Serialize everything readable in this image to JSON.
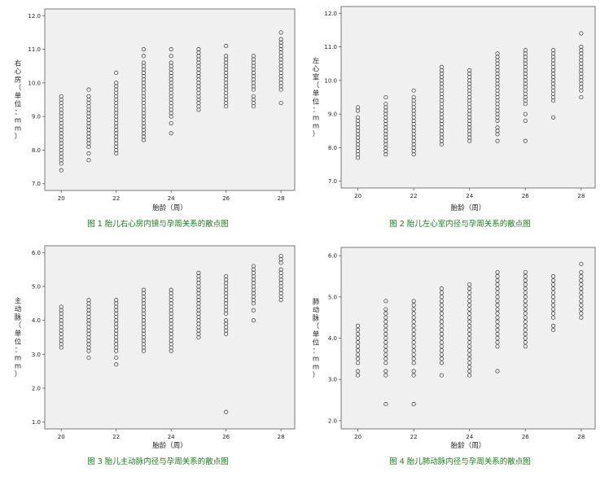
{
  "chart_data": [
    {
      "type": "scatter",
      "title": "图 1  胎儿右心房内镜与孕周关系的散点图",
      "xlabel": "胎龄（周）",
      "ylabel": "右心房（单位：mm）",
      "xlim": [
        19.4,
        28.5
      ],
      "ylim": [
        6.8,
        12.2
      ],
      "xticks": [
        20,
        22,
        24,
        26,
        28
      ],
      "yticks": [
        7.0,
        8.0,
        9.0,
        10.0,
        11.0,
        12.0
      ],
      "grid": false,
      "columns": [
        {
          "x": 20,
          "y": [
            7.4,
            7.6,
            7.7,
            7.8,
            7.9,
            8.0,
            8.1,
            8.2,
            8.3,
            8.4,
            8.5,
            8.6,
            8.7,
            8.8,
            8.9,
            9.0,
            9.1,
            9.2,
            9.3,
            9.4,
            9.5,
            9.6
          ]
        },
        {
          "x": 21,
          "y": [
            7.7,
            7.9,
            8.1,
            8.2,
            8.3,
            8.4,
            8.5,
            8.6,
            8.7,
            8.8,
            8.9,
            9.0,
            9.1,
            9.2,
            9.3,
            9.4,
            9.5,
            9.6,
            9.8
          ]
        },
        {
          "x": 22,
          "y": [
            7.9,
            8.0,
            8.1,
            8.2,
            8.3,
            8.4,
            8.5,
            8.6,
            8.7,
            8.8,
            8.9,
            9.0,
            9.1,
            9.2,
            9.3,
            9.4,
            9.5,
            9.6,
            9.7,
            9.8,
            9.9,
            10.0,
            10.3
          ]
        },
        {
          "x": 23,
          "y": [
            8.3,
            8.4,
            8.5,
            8.6,
            8.7,
            8.8,
            8.9,
            9.0,
            9.1,
            9.2,
            9.3,
            9.4,
            9.5,
            9.6,
            9.7,
            9.8,
            9.9,
            10.0,
            10.1,
            10.2,
            10.3,
            10.4,
            10.5,
            10.6,
            10.8,
            11.0
          ]
        },
        {
          "x": 24,
          "y": [
            8.5,
            8.8,
            9.0,
            9.1,
            9.2,
            9.3,
            9.4,
            9.5,
            9.6,
            9.7,
            9.8,
            9.9,
            10.0,
            10.1,
            10.2,
            10.3,
            10.4,
            10.5,
            10.6,
            10.8,
            11.0
          ]
        },
        {
          "x": 25,
          "y": [
            9.2,
            9.3,
            9.4,
            9.5,
            9.6,
            9.7,
            9.8,
            9.9,
            10.0,
            10.1,
            10.2,
            10.3,
            10.4,
            10.5,
            10.6,
            10.7,
            10.8,
            10.9,
            11.0
          ]
        },
        {
          "x": 26,
          "y": [
            9.3,
            9.4,
            9.5,
            9.6,
            9.7,
            9.8,
            9.9,
            10.0,
            10.1,
            10.2,
            10.3,
            10.4,
            10.5,
            10.6,
            10.7,
            10.8,
            11.1
          ]
        },
        {
          "x": 27,
          "y": [
            9.3,
            9.4,
            9.5,
            9.6,
            9.8,
            9.9,
            10.0,
            10.1,
            10.2,
            10.3,
            10.4,
            10.5,
            10.6,
            10.7,
            10.8
          ]
        },
        {
          "x": 28,
          "y": [
            9.4,
            9.8,
            9.9,
            10.0,
            10.1,
            10.2,
            10.3,
            10.4,
            10.5,
            10.6,
            10.7,
            10.8,
            10.9,
            11.0,
            11.1,
            11.2,
            11.3,
            11.5
          ]
        }
      ]
    },
    {
      "type": "scatter",
      "title": "图 2  胎儿左心室内径与孕周关系的散点图",
      "xlabel": "胎龄（周）",
      "ylabel": "左心室（单位：mm）",
      "xlim": [
        19.4,
        28.5
      ],
      "ylim": [
        6.8,
        12.2
      ],
      "xticks": [
        20,
        22,
        24,
        26,
        28
      ],
      "yticks": [
        7.0,
        8.0,
        9.0,
        10.0,
        11.0,
        12.0
      ],
      "grid": false,
      "columns": [
        {
          "x": 20,
          "y": [
            7.7,
            7.8,
            7.9,
            8.0,
            8.1,
            8.2,
            8.3,
            8.4,
            8.5,
            8.6,
            8.7,
            8.8,
            8.9,
            9.1,
            9.2
          ]
        },
        {
          "x": 21,
          "y": [
            7.8,
            7.9,
            8.0,
            8.1,
            8.2,
            8.3,
            8.4,
            8.5,
            8.6,
            8.7,
            8.8,
            8.9,
            9.0,
            9.1,
            9.2,
            9.3,
            9.5
          ]
        },
        {
          "x": 22,
          "y": [
            7.8,
            7.9,
            8.0,
            8.1,
            8.2,
            8.3,
            8.4,
            8.5,
            8.6,
            8.7,
            8.8,
            8.9,
            9.0,
            9.1,
            9.2,
            9.3,
            9.4,
            9.5,
            9.7
          ]
        },
        {
          "x": 23,
          "y": [
            8.1,
            8.2,
            8.3,
            8.4,
            8.5,
            8.6,
            8.7,
            8.8,
            8.9,
            9.0,
            9.1,
            9.2,
            9.3,
            9.4,
            9.5,
            9.6,
            9.7,
            9.8,
            9.9,
            10.0,
            10.1,
            10.2,
            10.3,
            10.4
          ]
        },
        {
          "x": 24,
          "y": [
            8.2,
            8.3,
            8.4,
            8.5,
            8.6,
            8.7,
            8.8,
            8.9,
            9.0,
            9.1,
            9.2,
            9.3,
            9.4,
            9.5,
            9.6,
            9.7,
            9.8,
            9.9,
            10.0,
            10.1,
            10.2,
            10.3
          ]
        },
        {
          "x": 25,
          "y": [
            8.2,
            8.4,
            8.5,
            8.6,
            8.8,
            8.9,
            9.0,
            9.1,
            9.2,
            9.3,
            9.4,
            9.5,
            9.6,
            9.7,
            9.8,
            9.9,
            10.0,
            10.1,
            10.2,
            10.3,
            10.4,
            10.5,
            10.6,
            10.7,
            10.8
          ]
        },
        {
          "x": 26,
          "y": [
            8.2,
            8.8,
            9.0,
            9.3,
            9.4,
            9.5,
            9.6,
            9.7,
            9.8,
            9.9,
            10.0,
            10.1,
            10.2,
            10.3,
            10.4,
            10.5,
            10.6,
            10.7,
            10.8,
            10.9
          ]
        },
        {
          "x": 27,
          "y": [
            8.9,
            9.4,
            9.5,
            9.6,
            9.7,
            9.8,
            9.9,
            10.0,
            10.1,
            10.2,
            10.3,
            10.4,
            10.5,
            10.6,
            10.7,
            10.8,
            10.9
          ]
        },
        {
          "x": 28,
          "y": [
            9.5,
            9.7,
            9.8,
            9.9,
            10.0,
            10.1,
            10.2,
            10.3,
            10.4,
            10.5,
            10.6,
            10.7,
            10.8,
            10.9,
            11.0,
            11.4
          ]
        }
      ]
    },
    {
      "type": "scatter",
      "title": "图 3  胎儿主动脉内径与孕周关系的散点图",
      "xlabel": "胎龄（周）",
      "ylabel": "主动脉（单位：mm）",
      "xlim": [
        19.4,
        28.5
      ],
      "ylim": [
        0.8,
        6.2
      ],
      "xticks": [
        20,
        22,
        24,
        26,
        28
      ],
      "yticks": [
        1.0,
        2.0,
        3.0,
        4.0,
        5.0,
        6.0
      ],
      "grid": false,
      "columns": [
        {
          "x": 20,
          "y": [
            3.2,
            3.3,
            3.4,
            3.5,
            3.6,
            3.7,
            3.8,
            3.9,
            4.0,
            4.1,
            4.2,
            4.3,
            4.4
          ]
        },
        {
          "x": 21,
          "y": [
            2.9,
            3.1,
            3.2,
            3.3,
            3.4,
            3.5,
            3.6,
            3.7,
            3.8,
            3.9,
            4.0,
            4.1,
            4.2,
            4.3,
            4.4,
            4.5,
            4.6
          ]
        },
        {
          "x": 22,
          "y": [
            2.7,
            2.9,
            3.1,
            3.2,
            3.3,
            3.4,
            3.5,
            3.6,
            3.7,
            3.8,
            3.9,
            4.0,
            4.1,
            4.2,
            4.3,
            4.4,
            4.5,
            4.6
          ]
        },
        {
          "x": 23,
          "y": [
            3.1,
            3.2,
            3.3,
            3.4,
            3.5,
            3.6,
            3.7,
            3.8,
            3.9,
            4.0,
            4.1,
            4.2,
            4.3,
            4.4,
            4.5,
            4.6,
            4.7,
            4.8,
            4.9
          ]
        },
        {
          "x": 24,
          "y": [
            3.1,
            3.2,
            3.3,
            3.4,
            3.5,
            3.6,
            3.7,
            3.8,
            3.9,
            4.0,
            4.1,
            4.2,
            4.3,
            4.4,
            4.5,
            4.6,
            4.7,
            4.8,
            4.9
          ]
        },
        {
          "x": 25,
          "y": [
            3.5,
            3.6,
            3.7,
            3.8,
            3.9,
            4.0,
            4.1,
            4.2,
            4.3,
            4.4,
            4.5,
            4.6,
            4.7,
            4.8,
            4.9,
            5.0,
            5.1,
            5.2,
            5.3,
            5.4
          ]
        },
        {
          "x": 26,
          "y": [
            1.3,
            3.6,
            3.7,
            3.8,
            3.9,
            4.0,
            4.2,
            4.3,
            4.4,
            4.5,
            4.6,
            4.7,
            4.8,
            4.9,
            5.0,
            5.1,
            5.2,
            5.3
          ]
        },
        {
          "x": 27,
          "y": [
            4.0,
            4.3,
            4.5,
            4.6,
            4.7,
            4.8,
            4.9,
            5.0,
            5.1,
            5.2,
            5.3,
            5.4,
            5.5,
            5.6
          ]
        },
        {
          "x": 28,
          "y": [
            4.6,
            4.7,
            4.8,
            4.9,
            5.0,
            5.1,
            5.2,
            5.3,
            5.4,
            5.5,
            5.7,
            5.8,
            5.9
          ]
        }
      ]
    },
    {
      "type": "scatter",
      "title": "图 4  胎儿肺动脉内径与孕周关系的散点图",
      "xlabel": "胎龄（周）",
      "ylabel": "肺动脉（单位：mm）",
      "xlim": [
        19.4,
        28.5
      ],
      "ylim": [
        1.8,
        6.2
      ],
      "xticks": [
        20,
        22,
        24,
        26,
        28
      ],
      "yticks": [
        2.0,
        3.0,
        4.0,
        5.0,
        6.0
      ],
      "grid": false,
      "columns": [
        {
          "x": 20,
          "y": [
            3.1,
            3.2,
            3.4,
            3.5,
            3.6,
            3.7,
            3.8,
            3.9,
            4.0,
            4.1,
            4.2,
            4.3
          ]
        },
        {
          "x": 21,
          "y": [
            2.4,
            3.1,
            3.2,
            3.4,
            3.5,
            3.6,
            3.7,
            3.8,
            3.9,
            4.0,
            4.1,
            4.2,
            4.3,
            4.4,
            4.5,
            4.6,
            4.7,
            4.9
          ]
        },
        {
          "x": 22,
          "y": [
            2.4,
            3.1,
            3.2,
            3.4,
            3.5,
            3.6,
            3.7,
            3.8,
            3.9,
            4.0,
            4.1,
            4.2,
            4.3,
            4.4,
            4.5,
            4.6,
            4.7,
            4.8,
            4.9
          ]
        },
        {
          "x": 23,
          "y": [
            3.1,
            3.4,
            3.5,
            3.6,
            3.7,
            3.8,
            3.9,
            4.0,
            4.1,
            4.2,
            4.3,
            4.4,
            4.5,
            4.6,
            4.7,
            4.8,
            4.9,
            5.0,
            5.1,
            5.2
          ]
        },
        {
          "x": 24,
          "y": [
            3.1,
            3.2,
            3.3,
            3.4,
            3.5,
            3.6,
            3.7,
            3.8,
            3.9,
            4.0,
            4.1,
            4.2,
            4.3,
            4.4,
            4.5,
            4.6,
            4.7,
            4.8,
            4.9,
            5.0,
            5.1,
            5.2,
            5.3
          ]
        },
        {
          "x": 25,
          "y": [
            3.2,
            3.8,
            3.9,
            4.0,
            4.1,
            4.2,
            4.3,
            4.4,
            4.5,
            4.6,
            4.7,
            4.8,
            4.9,
            5.0,
            5.1,
            5.2,
            5.3,
            5.4,
            5.5,
            5.6
          ]
        },
        {
          "x": 26,
          "y": [
            3.8,
            3.9,
            4.0,
            4.1,
            4.2,
            4.3,
            4.4,
            4.5,
            4.6,
            4.7,
            4.8,
            4.9,
            5.0,
            5.1,
            5.2,
            5.3,
            5.4,
            5.5,
            5.6
          ]
        },
        {
          "x": 27,
          "y": [
            4.2,
            4.3,
            4.5,
            4.6,
            4.7,
            4.8,
            4.9,
            5.0,
            5.1,
            5.2,
            5.3,
            5.4,
            5.5
          ]
        },
        {
          "x": 28,
          "y": [
            4.5,
            4.6,
            4.7,
            4.8,
            4.9,
            5.0,
            5.1,
            5.2,
            5.3,
            5.4,
            5.5,
            5.6,
            5.8
          ]
        }
      ]
    }
  ]
}
